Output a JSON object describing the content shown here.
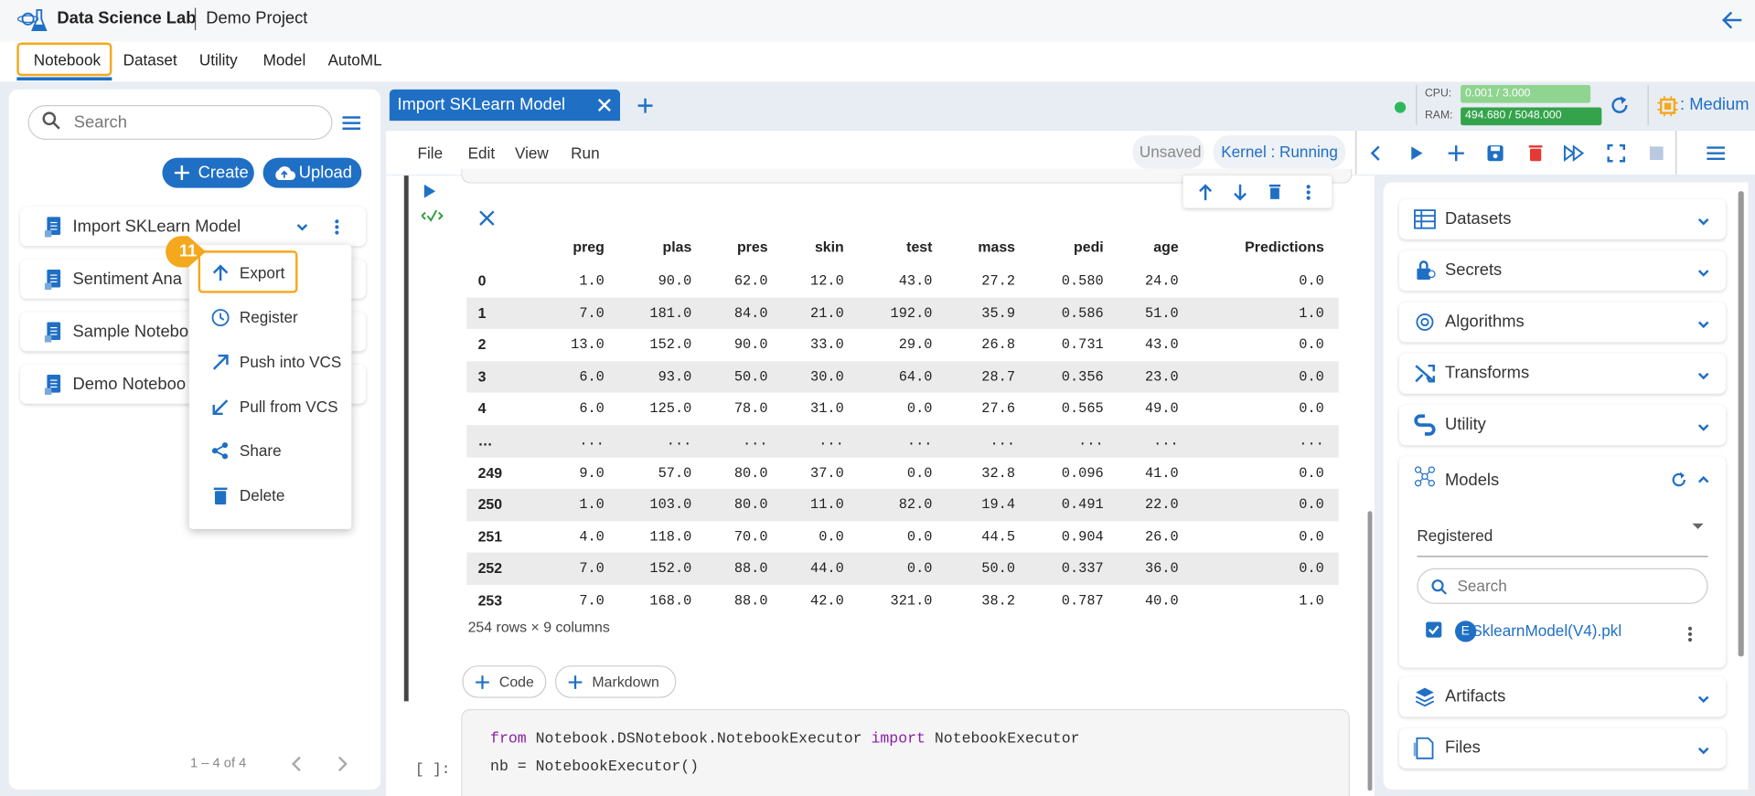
{
  "header": {
    "app": "Data Science Lab",
    "project": "Demo Project"
  },
  "tabs": [
    "Notebook",
    "Dataset",
    "Utility",
    "Model",
    "AutoML"
  ],
  "sidebar": {
    "search": "Search",
    "create": "Create",
    "upload": "Upload",
    "notebooks": [
      "Import SKLearn Model",
      "Sentiment Ana",
      "Sample Notebo",
      "Demo Noteboo"
    ],
    "pagination": "1 – 4 of 4",
    "step": "11"
  },
  "context_menu": [
    "Export",
    "Register",
    "Push into VCS",
    "Pull from VCS",
    "Share",
    "Delete"
  ],
  "editor": {
    "tab": "Import SKLearn Model",
    "menu": [
      "File",
      "Edit",
      "View",
      "Run"
    ],
    "status": "Unsaved",
    "kernel": "Kernel : Running",
    "cpu_label": "CPU:",
    "cpu": "0.001 / 3.000",
    "ram_label": "RAM:",
    "ram": "494.680 / 5048.000",
    "size": ": Medium"
  },
  "table": {
    "columns": [
      "preg",
      "plas",
      "pres",
      "skin",
      "test",
      "mass",
      "pedi",
      "age",
      "Predictions"
    ],
    "rows": [
      [
        "0",
        "1.0",
        "90.0",
        "62.0",
        "12.0",
        "43.0",
        "27.2",
        "0.580",
        "24.0",
        "0.0"
      ],
      [
        "1",
        "7.0",
        "181.0",
        "84.0",
        "21.0",
        "192.0",
        "35.9",
        "0.586",
        "51.0",
        "1.0"
      ],
      [
        "2",
        "13.0",
        "152.0",
        "90.0",
        "33.0",
        "29.0",
        "26.8",
        "0.731",
        "43.0",
        "0.0"
      ],
      [
        "3",
        "6.0",
        "93.0",
        "50.0",
        "30.0",
        "64.0",
        "28.7",
        "0.356",
        "23.0",
        "0.0"
      ],
      [
        "4",
        "6.0",
        "125.0",
        "78.0",
        "31.0",
        "0.0",
        "27.6",
        "0.565",
        "49.0",
        "0.0"
      ],
      [
        "…",
        "...",
        "...",
        "...",
        "...",
        "...",
        "...",
        "...",
        "...",
        "..."
      ],
      [
        "249",
        "9.0",
        "57.0",
        "80.0",
        "37.0",
        "0.0",
        "32.8",
        "0.096",
        "41.0",
        "0.0"
      ],
      [
        "250",
        "1.0",
        "103.0",
        "80.0",
        "11.0",
        "82.0",
        "19.4",
        "0.491",
        "22.0",
        "0.0"
      ],
      [
        "251",
        "4.0",
        "118.0",
        "70.0",
        "0.0",
        "0.0",
        "44.5",
        "0.904",
        "26.0",
        "0.0"
      ],
      [
        "252",
        "7.0",
        "152.0",
        "88.0",
        "44.0",
        "0.0",
        "50.0",
        "0.337",
        "36.0",
        "0.0"
      ],
      [
        "253",
        "7.0",
        "168.0",
        "88.0",
        "42.0",
        "321.0",
        "38.2",
        "0.787",
        "40.0",
        "1.0"
      ]
    ],
    "summary": "254 rows × 9 columns"
  },
  "add_buttons": [
    "Code",
    "Markdown"
  ],
  "code_cell": {
    "prompt": "[ ]:",
    "lines": [
      [
        "from",
        " Notebook.DSNotebook.NotebookExecutor ",
        "import",
        " NotebookExecutor"
      ],
      [
        "nb = NotebookExecutor()"
      ]
    ]
  },
  "right_panel": {
    "sections": [
      "Datasets",
      "Secrets",
      "Algorithms",
      "Transforms",
      "Utility",
      "Models",
      "Artifacts",
      "Files"
    ],
    "models": {
      "dropdown": "Registered",
      "search": "Search",
      "badge": "E",
      "item": "SklearnModel(V4).pkl"
    }
  }
}
